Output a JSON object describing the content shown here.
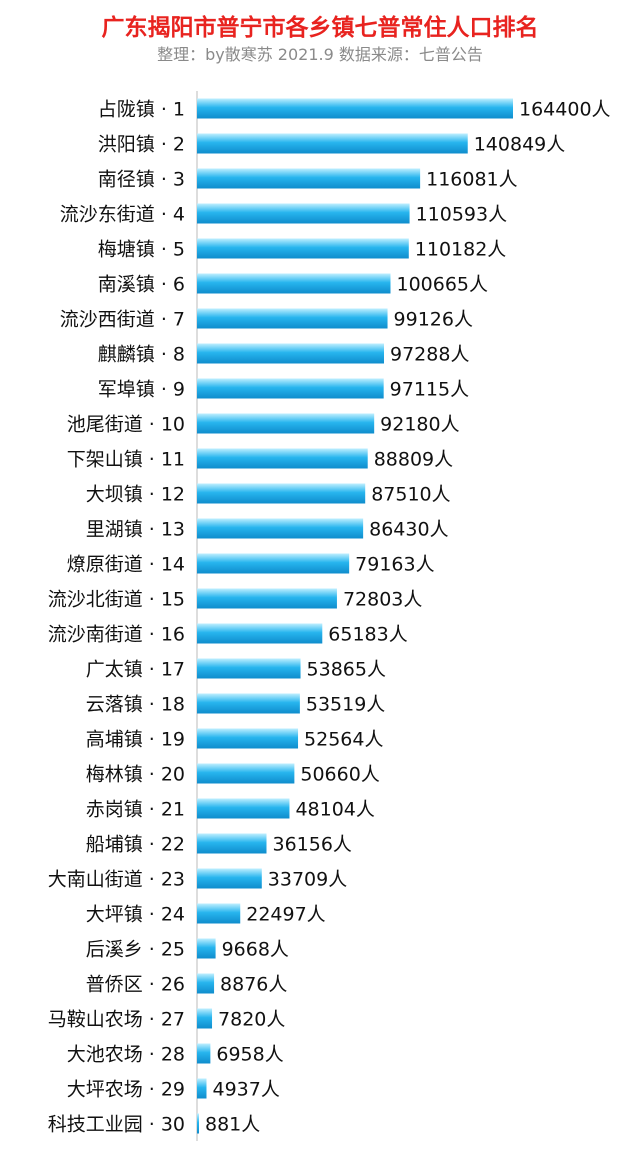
{
  "chart_data": {
    "type": "bar",
    "orientation": "horizontal",
    "title": "广东揭阳市普宁市各乡镇七普常住人口排名",
    "subtitle": "整理：by散寒苏 2021.9 数据来源：七普公告",
    "value_suffix": "人",
    "categories": [
      "占陇镇 · 1",
      "洪阳镇 · 2",
      "南径镇 · 3",
      "流沙东街道 · 4",
      "梅塘镇 · 5",
      "南溪镇 · 6",
      "流沙西街道 · 7",
      "麒麟镇 · 8",
      "军埠镇 · 9",
      "池尾街道 · 10",
      "下架山镇 · 11",
      "大坝镇 · 12",
      "里湖镇 · 13",
      "燎原街道 · 14",
      "流沙北街道 · 15",
      "流沙南街道 · 16",
      "广太镇 · 17",
      "云落镇 · 18",
      "高埔镇 · 19",
      "梅林镇 · 20",
      "赤岗镇 · 21",
      "船埔镇 · 22",
      "大南山街道 · 23",
      "大坪镇 · 24",
      "后溪乡 · 25",
      "普侨区 · 26",
      "马鞍山农场 · 27",
      "大池农场 · 28",
      "大坪农场 · 29",
      "科技工业园 · 30"
    ],
    "values": [
      164400,
      140849,
      116081,
      110593,
      110182,
      100665,
      99126,
      97288,
      97115,
      92180,
      88809,
      87510,
      86430,
      79163,
      72803,
      65183,
      53865,
      53519,
      52564,
      50660,
      48104,
      36156,
      33709,
      22497,
      9668,
      8876,
      7820,
      6958,
      4937,
      881
    ],
    "xlim": [
      0,
      164400
    ],
    "grid": false,
    "legend": "none",
    "colors": {
      "title": "#e8231f",
      "subtitle": "#8a8a8a",
      "bar_light": "#bfefff",
      "bar_mid": "#27b5ee",
      "bar_dark": "#0f8ccc",
      "axis": "#bbbbbb"
    }
  }
}
